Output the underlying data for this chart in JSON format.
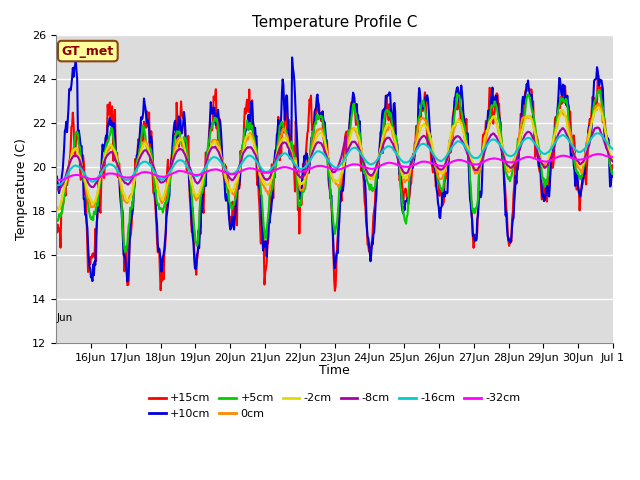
{
  "title": "Temperature Profile C",
  "xlabel": "Time",
  "ylabel": "Temperature (C)",
  "ylim": [
    12,
    26
  ],
  "legend_label": "GT_met",
  "series": [
    {
      "label": "+15cm",
      "color": "#FF0000",
      "lw": 1.5
    },
    {
      "label": "+10cm",
      "color": "#0000DD",
      "lw": 1.5
    },
    {
      "label": "+5cm",
      "color": "#00CC00",
      "lw": 1.5
    },
    {
      "label": "0cm",
      "color": "#FF8800",
      "lw": 1.5
    },
    {
      "label": "-2cm",
      "color": "#DDDD00",
      "lw": 1.5
    },
    {
      "label": "-8cm",
      "color": "#AA00AA",
      "lw": 1.5
    },
    {
      "label": "-16cm",
      "color": "#00CCCC",
      "lw": 1.5
    },
    {
      "label": "-32cm",
      "color": "#FF00FF",
      "lw": 1.5
    }
  ],
  "xtick_labels": [
    "16Jun",
    "17Jun",
    "18Jun",
    "19Jun",
    "20Jun",
    "21Jun",
    "22Jun",
    "23Jun",
    "24Jun",
    "25Jun",
    "26Jun",
    "27Jun",
    "28Jun",
    "29Jun",
    "30Jun",
    "Jul 1"
  ],
  "ytick_vals": [
    12,
    14,
    16,
    18,
    20,
    22,
    24,
    26
  ],
  "bg_color": "#DCDCDC",
  "grid_color": "#FFFFFF",
  "fig_bg": "#FFFFFF"
}
